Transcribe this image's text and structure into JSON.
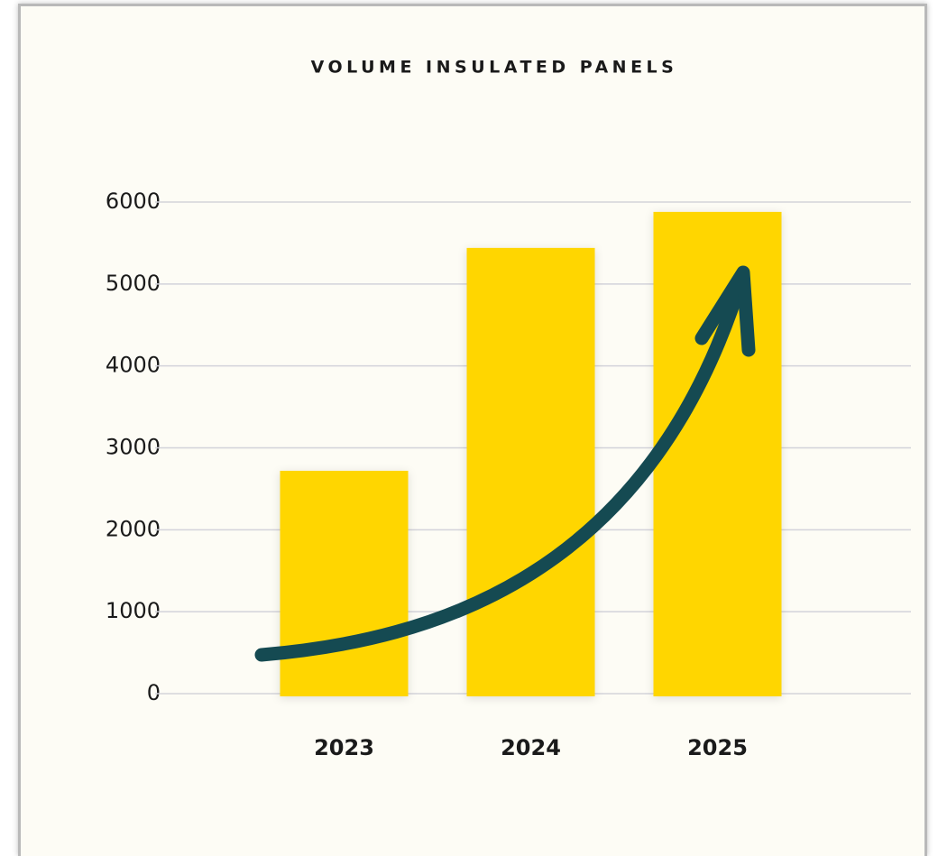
{
  "chart_data": {
    "type": "bar",
    "title": "VOLUME INSULATED PANELS",
    "categories": [
      "2023",
      "2024",
      "2025"
    ],
    "values": [
      2720,
      5440,
      5880
    ],
    "color": "#ffd600",
    "ylim": [
      0,
      6000
    ],
    "yticks": [
      0,
      1000,
      2000,
      3000,
      4000,
      5000,
      6000
    ],
    "grid": true
  }
}
